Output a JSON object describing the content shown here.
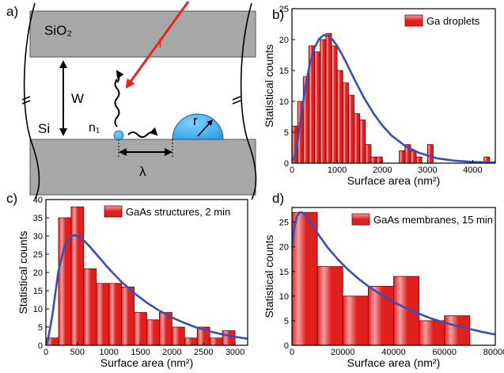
{
  "schematic": {
    "panel_label": "a)",
    "labels": {
      "oxide": "SiO₂",
      "substrate": "Si",
      "width": "W",
      "nucleus": "n₁",
      "diffusion": "λ",
      "radius": "r",
      "flux": "I"
    },
    "colors": {
      "oxide_fill": "#a8a8a8",
      "droplet_fill": "#2f9fe0",
      "flux_arrow": "#e8261c"
    }
  },
  "colors": {
    "bar_fill": "#e01f1f",
    "bar_light": "#f5a0a0",
    "bar_edge": "#7a0000",
    "fit_line": "#3a4fb5"
  },
  "chart_data": [
    {
      "panel_label": "b)",
      "type": "bar",
      "legend": "Ga droplets",
      "legend_position": "top-right",
      "xlabel": "Surface area (nm²)",
      "ylabel": "Statistical counts",
      "xlim": [
        0,
        4500
      ],
      "ylim": [
        0,
        25
      ],
      "xticks": [
        0,
        1000,
        2000,
        3000,
        4000
      ],
      "xtick_labels": [
        "0",
        "1000",
        "2000",
        "3000",
        "4000"
      ],
      "yticks": [
        0,
        5,
        10,
        15,
        20,
        25
      ],
      "ytick_labels": [
        "0",
        "5",
        "10",
        "15",
        "20",
        "25"
      ],
      "bin_width": 125,
      "bin_starts": [
        0,
        125,
        250,
        375,
        500,
        625,
        750,
        875,
        1000,
        1125,
        1250,
        1375,
        1500,
        1625,
        1750,
        1875,
        2375,
        2500,
        2625,
        2750,
        3000,
        4250
      ],
      "values": [
        6,
        10,
        14,
        19,
        18,
        20,
        21,
        19,
        15,
        13,
        11,
        8,
        7,
        3,
        1,
        1,
        2,
        3,
        2,
        1,
        3,
        1
      ],
      "fit_curve": {
        "x": [
          30,
          100,
          200,
          300,
          400,
          500,
          600,
          700,
          750,
          800,
          900,
          1000,
          1100,
          1200,
          1400,
          1600,
          1800,
          2000,
          2200,
          2500,
          2800,
          3200,
          3600,
          4000,
          4500
        ],
        "y": [
          0.3,
          2.5,
          7.5,
          12.5,
          16.2,
          18.7,
          20.1,
          20.7,
          20.7,
          20.6,
          20.0,
          19.0,
          17.7,
          16.3,
          13.3,
          10.5,
          8.1,
          6.1,
          4.5,
          2.8,
          1.7,
          0.8,
          0.4,
          0.2,
          0.1
        ]
      }
    },
    {
      "panel_label": "c)",
      "type": "bar",
      "legend": "GaAs structures, 2 min",
      "legend_position": "top-right",
      "xlabel": "Surface area (nm²)",
      "ylabel": "Statistical counts",
      "xlim": [
        0,
        3200
      ],
      "ylim": [
        0,
        40
      ],
      "xticks": [
        0,
        500,
        1000,
        1500,
        2000,
        2500,
        3000
      ],
      "xtick_labels": [
        "0",
        "500",
        "1000",
        "1500",
        "2000",
        "2500",
        "3000"
      ],
      "yticks": [
        0,
        5,
        10,
        15,
        20,
        25,
        30,
        35,
        40
      ],
      "ytick_labels": [
        "0",
        "5",
        "10",
        "15",
        "20",
        "25",
        "30",
        "35",
        "40"
      ],
      "bin_width": 200,
      "bin_starts": [
        0,
        200,
        400,
        600,
        800,
        1000,
        1200,
        1400,
        1600,
        1800,
        2000,
        2200,
        2400,
        2600,
        2800
      ],
      "values": [
        2,
        35,
        38,
        21,
        17,
        17,
        16,
        9,
        7,
        9,
        5,
        2,
        5,
        2,
        4
      ],
      "fit_curve": {
        "x": [
          20,
          100,
          200,
          300,
          400,
          450,
          500,
          600,
          700,
          800,
          1000,
          1200,
          1400,
          1600,
          1800,
          2000,
          2200,
          2400,
          2600,
          2800,
          3000,
          3200
        ],
        "y": [
          0.3,
          8.0,
          20.5,
          27.5,
          30.0,
          30.2,
          30.0,
          28.8,
          27.0,
          25.0,
          21.0,
          17.4,
          14.3,
          11.7,
          9.5,
          7.6,
          6.1,
          4.8,
          3.8,
          3.0,
          2.3,
          1.8
        ]
      }
    },
    {
      "panel_label": "d)",
      "type": "bar",
      "legend": "GaAs membranes, 15 min",
      "legend_position": "top-right",
      "xlabel": "Surface area (nm²)",
      "ylabel": "Statistical counts",
      "xlim": [
        0,
        80000
      ],
      "ylim": [
        0,
        28
      ],
      "xticks": [
        0,
        20000,
        40000,
        60000,
        80000
      ],
      "xtick_labels": [
        "0",
        "20000",
        "40000",
        "60000",
        "80000"
      ],
      "yticks": [
        0,
        5,
        10,
        15,
        20,
        25
      ],
      "ytick_labels": [
        "0",
        "5",
        "10",
        "15",
        "20",
        "25"
      ],
      "bin_width": 10000,
      "bin_starts": [
        0,
        10000,
        20000,
        30000,
        40000,
        50000,
        60000,
        70000
      ],
      "values": [
        27,
        16,
        10,
        12,
        14,
        5,
        6,
        0
      ],
      "fit_curve": {
        "x": [
          0,
          1000,
          2000,
          3000,
          4000,
          5000,
          6000,
          8000,
          10000,
          14000,
          18000,
          22000,
          26000,
          30000,
          35000,
          40000,
          45000,
          50000,
          55000,
          60000,
          65000,
          70000,
          75000,
          80000
        ],
        "y": [
          20.0,
          24.0,
          26.2,
          27.0,
          27.0,
          26.6,
          26.0,
          24.4,
          22.8,
          19.9,
          17.5,
          15.4,
          13.6,
          12.0,
          10.3,
          8.8,
          7.5,
          6.4,
          5.4,
          4.6,
          3.9,
          3.3,
          2.7,
          2.2
        ]
      }
    }
  ]
}
